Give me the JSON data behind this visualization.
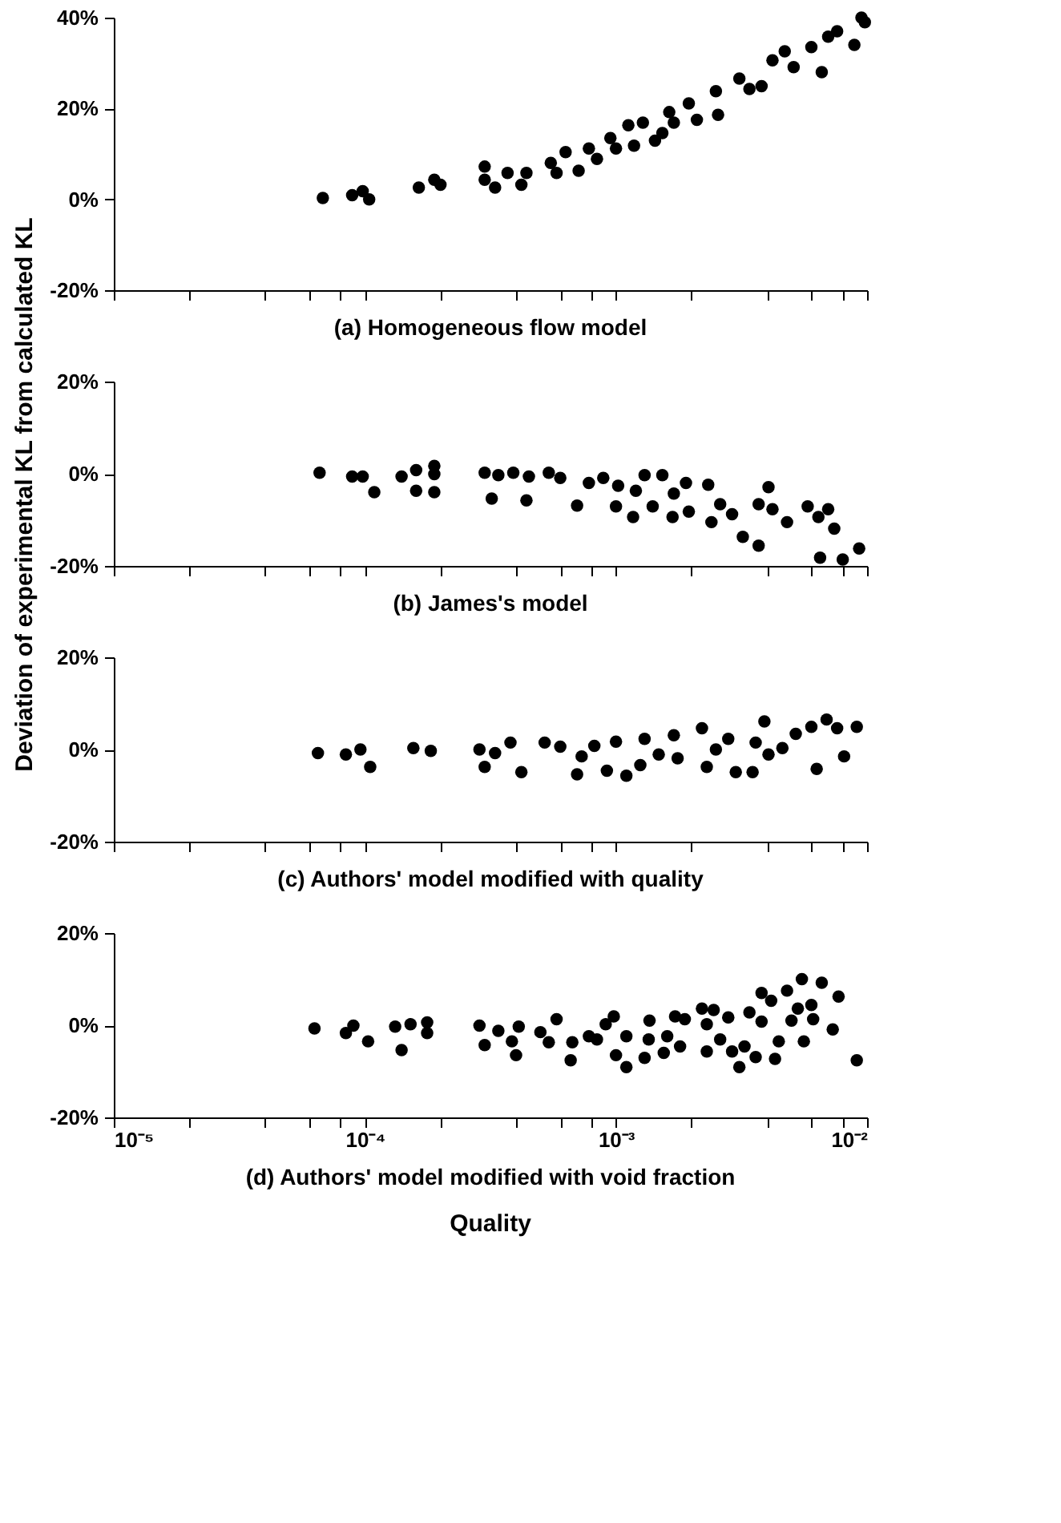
{
  "chart_data": [
    {
      "type": "scatter",
      "title": "(a)  Homogeneous flow model",
      "ylabel": "Deviation of experimental KL  from calculated KL",
      "marker": "circle",
      "grid": false,
      "log": "x",
      "tick_labels": "y",
      "x": [
        6.8e-05,
        8.9e-05,
        9.8e-05,
        0.000104,
        0.000164,
        0.000189,
        0.0002,
        0.0003,
        0.0003,
        0.00033,
        0.00037,
        0.00042,
        0.00044,
        0.00055,
        0.00058,
        0.00063,
        0.00071,
        0.00078,
        0.00084,
        0.00095,
        0.001,
        0.00112,
        0.00118,
        0.00128,
        0.00143,
        0.00153,
        0.00163,
        0.0017,
        0.00195,
        0.0021,
        0.0025,
        0.00255,
        0.0031,
        0.0034,
        0.0038,
        0.0042,
        0.0047,
        0.0051,
        0.006,
        0.0066,
        0.007,
        0.0076,
        0.0089,
        0.0095,
        0.0098
      ],
      "series": [
        {
          "color": "#000000",
          "values": [
            0.3,
            0.9,
            1.8,
            0,
            2.6,
            4.3,
            3.2,
            7.2,
            4.3,
            2.6,
            5.8,
            3.2,
            5.8,
            8,
            5.8,
            10.4,
            6.3,
            11.2,
            8.9,
            13.5,
            11.2,
            16.3,
            11.8,
            16.9,
            12.9,
            14.6,
            19.2,
            16.9,
            21.1,
            17.5,
            23.8,
            18.6,
            26.6,
            24.3,
            24.9,
            30.6,
            32.6,
            29.1,
            33.5,
            28,
            35.8,
            37,
            34,
            40,
            39
          ]
        }
      ],
      "xlim": [
        1e-05,
        0.01
      ],
      "xticks": [
        {
          "value": 1e-05,
          "label": null
        },
        {
          "value": 2e-05,
          "label": null
        },
        {
          "value": 4e-05,
          "label": null
        },
        {
          "value": 6e-05,
          "label": null
        },
        {
          "value": 8e-05,
          "label": null
        },
        {
          "value": 0.0001,
          "label": null
        },
        {
          "value": 0.0002,
          "label": null
        },
        {
          "value": 0.0004,
          "label": null
        },
        {
          "value": 0.0006,
          "label": null
        },
        {
          "value": 0.0008,
          "label": null
        },
        {
          "value": 0.001,
          "label": null
        },
        {
          "value": 0.002,
          "label": null
        },
        {
          "value": 0.004,
          "label": null
        },
        {
          "value": 0.006,
          "label": null
        },
        {
          "value": 0.008,
          "label": null
        },
        {
          "value": 0.01,
          "label": null
        }
      ],
      "ylim": [
        -20,
        40
      ],
      "yticks": [
        {
          "value": -20,
          "label": "-20%"
        },
        {
          "value": 0,
          "label": "0%"
        },
        {
          "value": 20,
          "label": "20%"
        },
        {
          "value": 40,
          "label": "40%"
        }
      ]
    },
    {
      "type": "scatter",
      "title": "(b)  James's model",
      "marker": "circle",
      "grid": false,
      "log": "x",
      "tick_labels": "y",
      "x": [
        6.6e-05,
        8.9e-05,
        9.8e-05,
        0.000109,
        0.00014,
        0.00016,
        0.00016,
        0.000189,
        0.000189,
        0.000189,
        0.0003,
        0.00032,
        0.00034,
        0.00039,
        0.00044,
        0.00045,
        0.00054,
        0.0006,
        0.0007,
        0.00078,
        0.00089,
        0.001,
        0.00102,
        0.00117,
        0.0012,
        0.0013,
        0.0014,
        0.00153,
        0.00168,
        0.0017,
        0.0019,
        0.00195,
        0.00233,
        0.0024,
        0.0026,
        0.0029,
        0.0032,
        0.0037,
        0.00405,
        0.0037,
        0.0042,
        0.0048,
        0.0058,
        0.0064,
        0.0065,
        0.007,
        0.0074,
        0.008,
        0.0093
      ],
      "series": [
        {
          "color": "#000000",
          "values": [
            0.2,
            -0.6,
            -0.6,
            -4,
            -0.6,
            0.8,
            -3.7,
            1.7,
            -0.1,
            -4,
            0.2,
            -5.4,
            -0.3,
            0.2,
            -5.8,
            -0.6,
            0.2,
            -0.9,
            -6.9,
            -2,
            -0.9,
            -7.1,
            -2.6,
            -9.4,
            -3.7,
            -0.3,
            -7.1,
            -0.3,
            -9.4,
            -4.3,
            -2,
            -8.2,
            -2.4,
            -10.5,
            -6.6,
            -8.8,
            -13.7,
            -15.6,
            -2.9,
            -6.6,
            -7.7,
            -10.5,
            -7.1,
            -9.4,
            -18.2,
            -7.7,
            -11.9,
            -18.6,
            -16.2
          ]
        }
      ],
      "xlim": [
        1e-05,
        0.01
      ],
      "xticks": [
        {
          "value": 1e-05,
          "label": null
        },
        {
          "value": 2e-05,
          "label": null
        },
        {
          "value": 4e-05,
          "label": null
        },
        {
          "value": 6e-05,
          "label": null
        },
        {
          "value": 8e-05,
          "label": null
        },
        {
          "value": 0.0001,
          "label": null
        },
        {
          "value": 0.0002,
          "label": null
        },
        {
          "value": 0.0004,
          "label": null
        },
        {
          "value": 0.0006,
          "label": null
        },
        {
          "value": 0.0008,
          "label": null
        },
        {
          "value": 0.001,
          "label": null
        },
        {
          "value": 0.002,
          "label": null
        },
        {
          "value": 0.004,
          "label": null
        },
        {
          "value": 0.006,
          "label": null
        },
        {
          "value": 0.008,
          "label": null
        },
        {
          "value": 0.01,
          "label": null
        }
      ],
      "ylim": [
        -20,
        20
      ],
      "yticks": [
        {
          "value": -20,
          "label": "-20%"
        },
        {
          "value": 0,
          "label": "0%"
        },
        {
          "value": 20,
          "label": "20%"
        }
      ]
    },
    {
      "type": "scatter",
      "title": "(c)  Authors' model modified with quality",
      "marker": "circle",
      "grid": false,
      "log": "x",
      "tick_labels": "y",
      "x": [
        6.5e-05,
        8.4e-05,
        9.6e-05,
        0.000105,
        0.000156,
        0.000183,
        0.000286,
        0.0003,
        0.00033,
        0.00038,
        0.00042,
        0.00052,
        0.0006,
        0.0007,
        0.00073,
        0.00082,
        0.00092,
        0.001,
        0.0011,
        0.00125,
        0.0013,
        0.00148,
        0.0017,
        0.00176,
        0.0022,
        0.0023,
        0.0025,
        0.0028,
        0.003,
        0.0035,
        0.0036,
        0.0039,
        0.00405,
        0.0046,
        0.0052,
        0.006,
        0.0063,
        0.0069,
        0.0076,
        0.0081,
        0.0091
      ],
      "series": [
        {
          "color": "#000000",
          "values": [
            -0.8,
            -1.1,
            0,
            -3.8,
            0.3,
            -0.3,
            0,
            -3.8,
            -0.8,
            1.5,
            -4.9,
            1.5,
            0.6,
            -5.4,
            -1.5,
            0.8,
            -4.6,
            1.7,
            -5.7,
            -3.4,
            2.3,
            -1.1,
            3.1,
            -1.9,
            4.6,
            -3.8,
            0,
            2.3,
            -4.9,
            -4.9,
            1.5,
            6.1,
            -1.1,
            0.3,
            3.4,
            4.9,
            -4.2,
            6.5,
            4.6,
            -1.5,
            4.9
          ]
        }
      ],
      "xlim": [
        1e-05,
        0.01
      ],
      "xticks": [
        {
          "value": 1e-05,
          "label": null
        },
        {
          "value": 2e-05,
          "label": null
        },
        {
          "value": 4e-05,
          "label": null
        },
        {
          "value": 6e-05,
          "label": null
        },
        {
          "value": 8e-05,
          "label": null
        },
        {
          "value": 0.0001,
          "label": null
        },
        {
          "value": 0.0002,
          "label": null
        },
        {
          "value": 0.0004,
          "label": null
        },
        {
          "value": 0.0006,
          "label": null
        },
        {
          "value": 0.0008,
          "label": null
        },
        {
          "value": 0.001,
          "label": null
        },
        {
          "value": 0.002,
          "label": null
        },
        {
          "value": 0.004,
          "label": null
        },
        {
          "value": 0.006,
          "label": null
        },
        {
          "value": 0.008,
          "label": null
        },
        {
          "value": 0.01,
          "label": null
        }
      ],
      "ylim": [
        -20,
        20
      ],
      "yticks": [
        {
          "value": -20,
          "label": "-20%"
        },
        {
          "value": 0,
          "label": "0%"
        },
        {
          "value": 20,
          "label": "20%"
        }
      ]
    },
    {
      "type": "scatter",
      "title": "(d)  Authors' model modified with void fraction",
      "xlabel": "Quality",
      "marker": "circle",
      "grid": false,
      "log": "x",
      "x": [
        6.3e-05,
        8.4e-05,
        9e-05,
        0.000103,
        0.000132,
        0.00014,
        0.000152,
        0.000177,
        0.000177,
        0.000286,
        0.0003,
        0.00034,
        0.000385,
        0.0004,
        0.00041,
        0.0005,
        0.00054,
        0.00058,
        0.00066,
        0.00067,
        0.00078,
        0.00084,
        0.00091,
        0.00098,
        0.001,
        0.0011,
        0.0011,
        0.0013,
        0.00135,
        0.00136,
        0.00155,
        0.0016,
        0.00172,
        0.0018,
        0.00188,
        0.0022,
        0.0023,
        0.0023,
        0.00245,
        0.0026,
        0.0028,
        0.0029,
        0.0031,
        0.00325,
        0.0034,
        0.0036,
        0.0038,
        0.0038,
        0.00415,
        0.0043,
        0.00445,
        0.0048,
        0.005,
        0.0053,
        0.0055,
        0.0056,
        0.006,
        0.0061,
        0.0066,
        0.0073,
        0.0077,
        0.0091
      ],
      "series": [
        {
          "color": "#000000",
          "values": [
            -0.7,
            -1.7,
            -0.1,
            -3.5,
            -0.3,
            -5.4,
            0.2,
            0.6,
            -1.7,
            -0.1,
            -4.3,
            -1.2,
            -3.5,
            -6.5,
            -0.3,
            -1.5,
            -3.7,
            1.3,
            -7.6,
            -3.7,
            -2.4,
            -3.1,
            0.2,
            1.9,
            -6.5,
            -9.1,
            -2.4,
            -7.1,
            -3.1,
            1,
            -6,
            -2.4,
            1.9,
            -4.6,
            1.3,
            3.6,
            -5.7,
            0.2,
            3.3,
            -3.1,
            1.7,
            -5.7,
            -9.1,
            -4.6,
            2.8,
            -6.9,
            7,
            0.8,
            5.3,
            -7.3,
            -3.5,
            7.5,
            1,
            3.6,
            10,
            -3.5,
            4.4,
            1.3,
            9.2,
            -0.9,
            6.2,
            -7.6
          ]
        }
      ],
      "xlim": [
        1e-05,
        0.01
      ],
      "xticks": [
        {
          "value": 1e-05,
          "label": "10⁻⁵"
        },
        {
          "value": 2e-05,
          "label": null
        },
        {
          "value": 4e-05,
          "label": null
        },
        {
          "value": 6e-05,
          "label": null
        },
        {
          "value": 8e-05,
          "label": null
        },
        {
          "value": 0.0001,
          "label": "10⁻⁴"
        },
        {
          "value": 0.0002,
          "label": null
        },
        {
          "value": 0.0004,
          "label": null
        },
        {
          "value": 0.0006,
          "label": null
        },
        {
          "value": 0.0008,
          "label": null
        },
        {
          "value": 0.001,
          "label": "10⁻³"
        },
        {
          "value": 0.002,
          "label": null
        },
        {
          "value": 0.004,
          "label": null
        },
        {
          "value": 0.006,
          "label": null
        },
        {
          "value": 0.008,
          "label": null
        },
        {
          "value": 0.01,
          "label": "10⁻²"
        }
      ],
      "ylim": [
        -20,
        20
      ],
      "yticks": [
        {
          "value": -20,
          "label": "-20%"
        },
        {
          "value": 0,
          "label": "0%"
        },
        {
          "value": 20,
          "label": "20%"
        }
      ]
    }
  ]
}
